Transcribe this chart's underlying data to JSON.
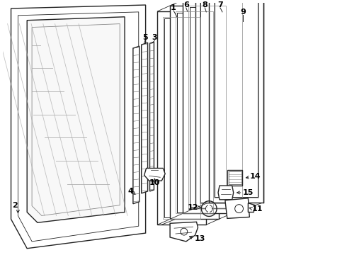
{
  "background_color": "#ffffff",
  "line_color": "#222222",
  "label_color": "#000000",
  "figsize": [
    4.9,
    3.6
  ],
  "dpi": 100
}
